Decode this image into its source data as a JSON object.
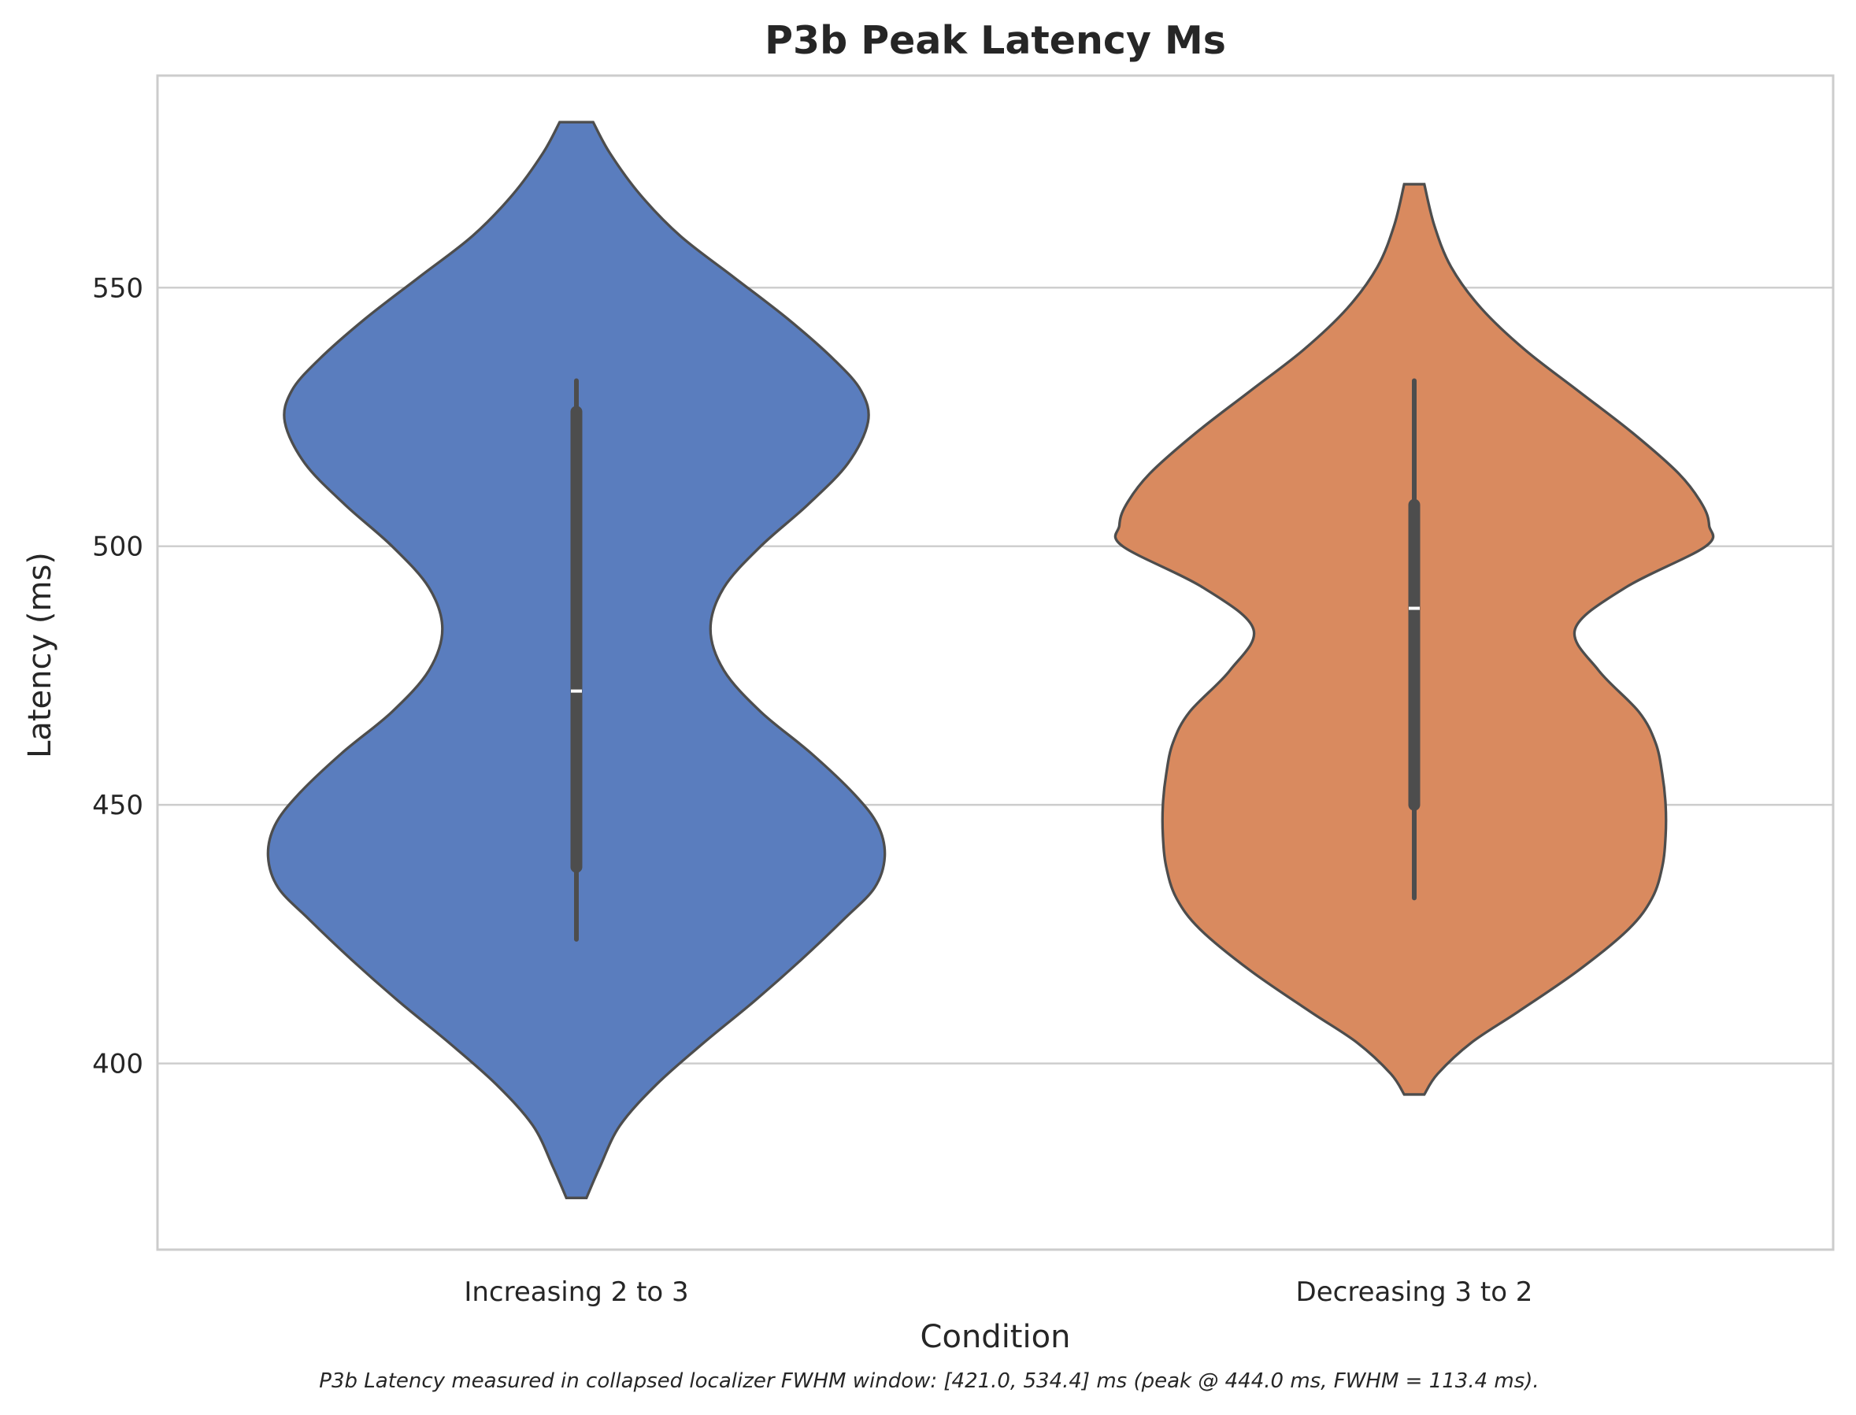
{
  "chart_data": {
    "type": "violin",
    "title": "P3b Peak Latency Ms",
    "xlabel": "Condition",
    "ylabel": "Latency (ms)",
    "ylim": [
      364,
      591
    ],
    "yticks": [
      400,
      450,
      500,
      550
    ],
    "grid": true,
    "categories": [
      "Increasing 2 to 3",
      "Decreasing 3 to 2"
    ],
    "series": [
      {
        "color": "#5a7dbe",
        "y_min": 374,
        "y_max": 582,
        "whisker_low": 424,
        "q1": 438,
        "median": 472,
        "q3": 526,
        "whisker_high": 532,
        "density_profile": [
          [
            374,
            0.03
          ],
          [
            380,
            0.07
          ],
          [
            388,
            0.13
          ],
          [
            396,
            0.24
          ],
          [
            404,
            0.38
          ],
          [
            412,
            0.53
          ],
          [
            420,
            0.67
          ],
          [
            428,
            0.8
          ],
          [
            434,
            0.89
          ],
          [
            440,
            0.92
          ],
          [
            446,
            0.9
          ],
          [
            452,
            0.83
          ],
          [
            460,
            0.7
          ],
          [
            468,
            0.55
          ],
          [
            476,
            0.44
          ],
          [
            484,
            0.4
          ],
          [
            492,
            0.44
          ],
          [
            500,
            0.55
          ],
          [
            508,
            0.69
          ],
          [
            516,
            0.81
          ],
          [
            524,
            0.87
          ],
          [
            530,
            0.85
          ],
          [
            536,
            0.77
          ],
          [
            544,
            0.63
          ],
          [
            552,
            0.47
          ],
          [
            560,
            0.31
          ],
          [
            568,
            0.19
          ],
          [
            576,
            0.1
          ],
          [
            582,
            0.05
          ]
        ]
      },
      {
        "color": "#d98a5f",
        "y_min": 394,
        "y_max": 570,
        "whisker_low": 432,
        "q1": 450,
        "median": 488,
        "q3": 508,
        "whisker_high": 532,
        "density_profile": [
          [
            394,
            0.03
          ],
          [
            398,
            0.07
          ],
          [
            404,
            0.17
          ],
          [
            410,
            0.31
          ],
          [
            418,
            0.49
          ],
          [
            426,
            0.64
          ],
          [
            432,
            0.71
          ],
          [
            438,
            0.74
          ],
          [
            444,
            0.75
          ],
          [
            450,
            0.75
          ],
          [
            456,
            0.74
          ],
          [
            462,
            0.72
          ],
          [
            468,
            0.67
          ],
          [
            476,
            0.55
          ],
          [
            484,
            0.48
          ],
          [
            492,
            0.63
          ],
          [
            500,
            0.87
          ],
          [
            504,
            0.88
          ],
          [
            508,
            0.86
          ],
          [
            514,
            0.79
          ],
          [
            522,
            0.65
          ],
          [
            530,
            0.49
          ],
          [
            538,
            0.33
          ],
          [
            546,
            0.2
          ],
          [
            554,
            0.11
          ],
          [
            562,
            0.06
          ],
          [
            570,
            0.03
          ]
        ]
      }
    ],
    "caption": "P3b Latency measured in collapsed localizer FWHM window: [421.0, 534.4] ms (peak @ 444.0 ms, FWHM = 113.4 ms)."
  }
}
